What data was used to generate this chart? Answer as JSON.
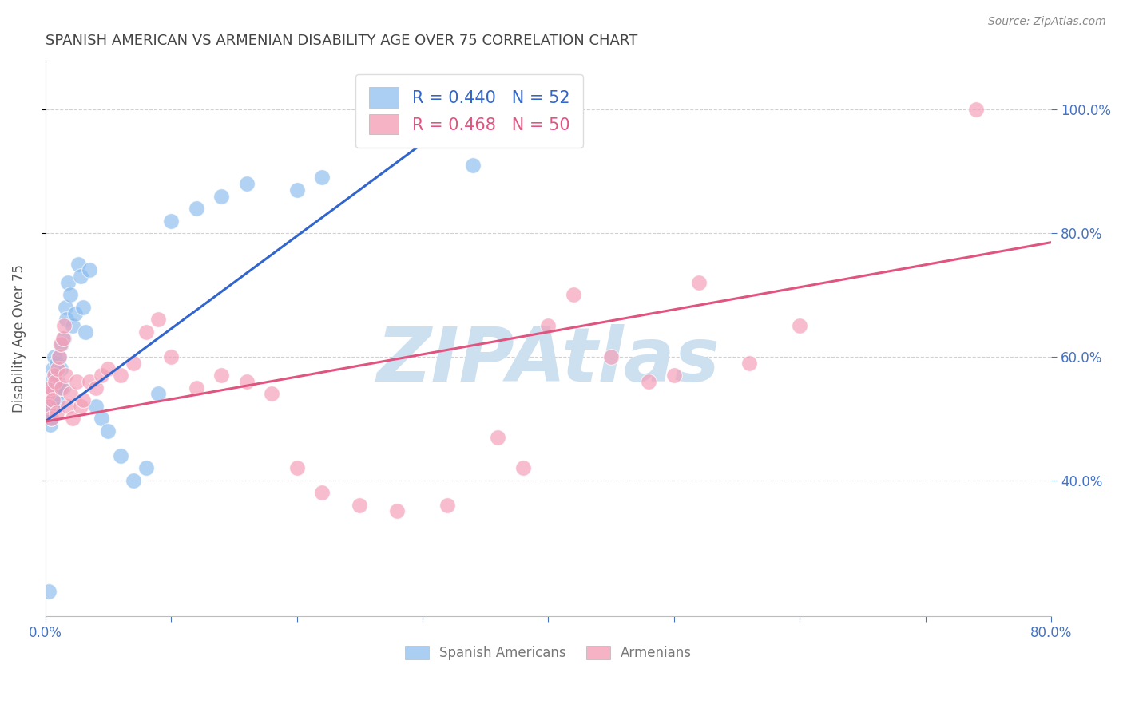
{
  "title": "SPANISH AMERICAN VS ARMENIAN DISABILITY AGE OVER 75 CORRELATION CHART",
  "source": "Source: ZipAtlas.com",
  "ylabel": "Disability Age Over 75",
  "legend_labels": [
    "Spanish Americans",
    "Armenians"
  ],
  "blue_color": "#88bbee",
  "pink_color": "#f4a0b8",
  "blue_line_color": "#3366cc",
  "pink_line_color": "#e05580",
  "r_blue": 0.44,
  "n_blue": 52,
  "r_pink": 0.468,
  "n_pink": 50,
  "xlim": [
    0.0,
    0.8
  ],
  "ylim": [
    0.18,
    1.08
  ],
  "blue_line_x": [
    0.0,
    0.35
  ],
  "blue_line_y": [
    0.495,
    1.02
  ],
  "pink_line_x": [
    0.0,
    0.8
  ],
  "pink_line_y": [
    0.495,
    0.785
  ],
  "blue_x": [
    0.001,
    0.002,
    0.002,
    0.003,
    0.003,
    0.004,
    0.004,
    0.005,
    0.005,
    0.005,
    0.006,
    0.006,
    0.007,
    0.007,
    0.008,
    0.008,
    0.009,
    0.009,
    0.01,
    0.01,
    0.011,
    0.011,
    0.012,
    0.013,
    0.014,
    0.015,
    0.016,
    0.017,
    0.018,
    0.02,
    0.022,
    0.024,
    0.026,
    0.028,
    0.03,
    0.032,
    0.035,
    0.04,
    0.045,
    0.05,
    0.06,
    0.07,
    0.08,
    0.09,
    0.1,
    0.12,
    0.14,
    0.16,
    0.2,
    0.22,
    0.34,
    0.003
  ],
  "blue_y": [
    0.52,
    0.5,
    0.54,
    0.51,
    0.53,
    0.49,
    0.55,
    0.5,
    0.52,
    0.56,
    0.53,
    0.58,
    0.55,
    0.6,
    0.52,
    0.57,
    0.54,
    0.59,
    0.53,
    0.56,
    0.55,
    0.6,
    0.58,
    0.62,
    0.55,
    0.63,
    0.68,
    0.66,
    0.72,
    0.7,
    0.65,
    0.67,
    0.75,
    0.73,
    0.68,
    0.64,
    0.74,
    0.52,
    0.5,
    0.48,
    0.44,
    0.4,
    0.42,
    0.54,
    0.82,
    0.84,
    0.86,
    0.88,
    0.87,
    0.89,
    0.91,
    0.22
  ],
  "pink_x": [
    0.002,
    0.003,
    0.004,
    0.005,
    0.006,
    0.007,
    0.008,
    0.009,
    0.01,
    0.011,
    0.012,
    0.013,
    0.014,
    0.015,
    0.016,
    0.018,
    0.02,
    0.022,
    0.025,
    0.028,
    0.03,
    0.035,
    0.04,
    0.045,
    0.05,
    0.06,
    0.07,
    0.08,
    0.09,
    0.1,
    0.12,
    0.14,
    0.16,
    0.18,
    0.2,
    0.22,
    0.25,
    0.28,
    0.32,
    0.36,
    0.38,
    0.4,
    0.42,
    0.45,
    0.48,
    0.5,
    0.52,
    0.56,
    0.6,
    0.74
  ],
  "pink_y": [
    0.54,
    0.52,
    0.55,
    0.5,
    0.53,
    0.57,
    0.56,
    0.51,
    0.58,
    0.6,
    0.62,
    0.55,
    0.63,
    0.65,
    0.57,
    0.52,
    0.54,
    0.5,
    0.56,
    0.52,
    0.53,
    0.56,
    0.55,
    0.57,
    0.58,
    0.57,
    0.59,
    0.64,
    0.66,
    0.6,
    0.55,
    0.57,
    0.56,
    0.54,
    0.42,
    0.38,
    0.36,
    0.35,
    0.36,
    0.47,
    0.42,
    0.65,
    0.7,
    0.6,
    0.56,
    0.57,
    0.72,
    0.59,
    0.65,
    1.0
  ],
  "watermark": "ZIPAtlas",
  "watermark_color": "#cce0f0",
  "background_color": "#ffffff",
  "grid_color": "#cccccc",
  "title_color": "#444444",
  "axis_label_color": "#555555",
  "tick_color": "#4472c4",
  "source_color": "#888888"
}
